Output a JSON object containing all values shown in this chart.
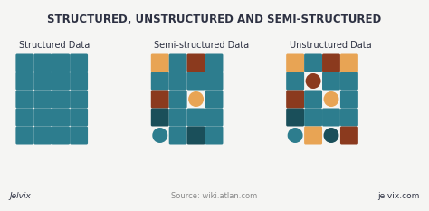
{
  "title": "STRUCTURED, UNSTRUCTURED AND SEMI-STRUCTURED",
  "bg_color": "#f5f5f3",
  "title_color": "#2d3142",
  "label_color": "#2d3142",
  "teal": "#2d7d8e",
  "dark_teal": "#1a4f5a",
  "orange": "#e8a454",
  "brown": "#8b3a1e",
  "subtitle_labels": [
    "Structured Data",
    "Semi-structured Data",
    "Unstructured Data"
  ],
  "footer_left": "Jelvix",
  "footer_center": "Source: wiki.atlan.com",
  "footer_right": "jelvix.com",
  "structured": [
    [
      "sq_teal",
      "sq_teal",
      "sq_teal",
      "sq_teal"
    ],
    [
      "sq_teal",
      "sq_teal",
      "sq_teal",
      "sq_teal"
    ],
    [
      "sq_teal",
      "sq_teal",
      "sq_teal",
      "sq_teal"
    ],
    [
      "sq_teal",
      "sq_teal",
      "sq_teal",
      "sq_teal"
    ],
    [
      "sq_teal",
      "sq_teal",
      "sq_teal",
      "sq_teal"
    ]
  ],
  "semi": [
    [
      "sq_orange",
      "sq_teal",
      "sq_brown",
      "sq_teal"
    ],
    [
      "sq_teal",
      "sq_teal",
      "sq_teal",
      "sq_teal"
    ],
    [
      "sq_brown",
      "sq_teal",
      "ci_orange",
      "sq_teal"
    ],
    [
      "sq_dark",
      "sq_teal",
      "sq_teal",
      "sq_teal"
    ],
    [
      "ci_teal",
      "sq_teal",
      "sq_dark",
      "sq_teal"
    ]
  ],
  "unstruct": [
    [
      "sq_orange",
      "sq_teal",
      "sq_brown",
      "sq_orange"
    ],
    [
      "sq_teal",
      "ci_brown",
      "sq_teal",
      "sq_teal"
    ],
    [
      "sq_brown",
      "sq_teal",
      "ci_orange",
      "sq_teal"
    ],
    [
      "sq_dark",
      "sq_teal",
      "sq_teal",
      "sq_teal"
    ],
    [
      "ci_teal",
      "sq_orange",
      "ci_dark",
      "sq_brown"
    ]
  ]
}
